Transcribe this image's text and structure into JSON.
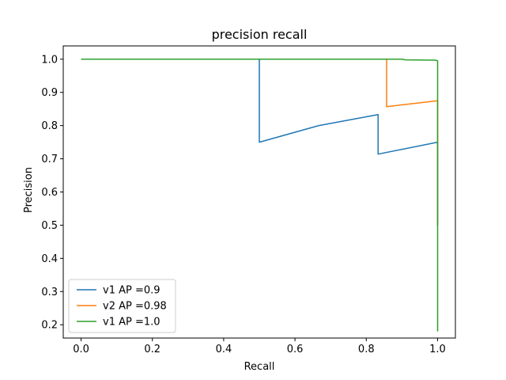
{
  "chart_data": {
    "type": "line",
    "title": "precision recall",
    "xlabel": "Recall",
    "ylabel": "Precision",
    "xlim": [
      -0.05,
      1.05
    ],
    "ylim": [
      0.16,
      1.04
    ],
    "xticks": [
      "0.0",
      "0.2",
      "0.4",
      "0.6",
      "0.8",
      "1.0"
    ],
    "yticks": [
      "0.2",
      "0.3",
      "0.4",
      "0.5",
      "0.6",
      "0.7",
      "0.8",
      "0.9",
      "1.0"
    ],
    "grid": false,
    "legend_position": "lower-left",
    "series": [
      {
        "name": "v1 AP =0.9",
        "color": "#1f77b4",
        "points": [
          [
            0.0,
            1.0
          ],
          [
            0.5,
            1.0
          ],
          [
            0.5,
            0.75
          ],
          [
            0.667,
            0.8
          ],
          [
            0.833,
            0.833
          ],
          [
            0.833,
            0.714
          ],
          [
            1.0,
            0.75
          ],
          [
            1.0,
            0.5
          ]
        ]
      },
      {
        "name": "v2 AP =0.98",
        "color": "#ff7f0e",
        "points": [
          [
            0.0,
            1.0
          ],
          [
            0.857,
            1.0
          ],
          [
            0.857,
            0.857
          ],
          [
            1.0,
            0.875
          ],
          [
            1.0,
            0.5
          ]
        ]
      },
      {
        "name": "v1 AP =1.0",
        "color": "#2ca02c",
        "points": [
          [
            0.0,
            1.0
          ],
          [
            0.9,
            1.0
          ],
          [
            0.91,
            0.998
          ],
          [
            0.995,
            0.997
          ],
          [
            1.0,
            0.995
          ],
          [
            1.0,
            0.18
          ]
        ]
      }
    ]
  }
}
